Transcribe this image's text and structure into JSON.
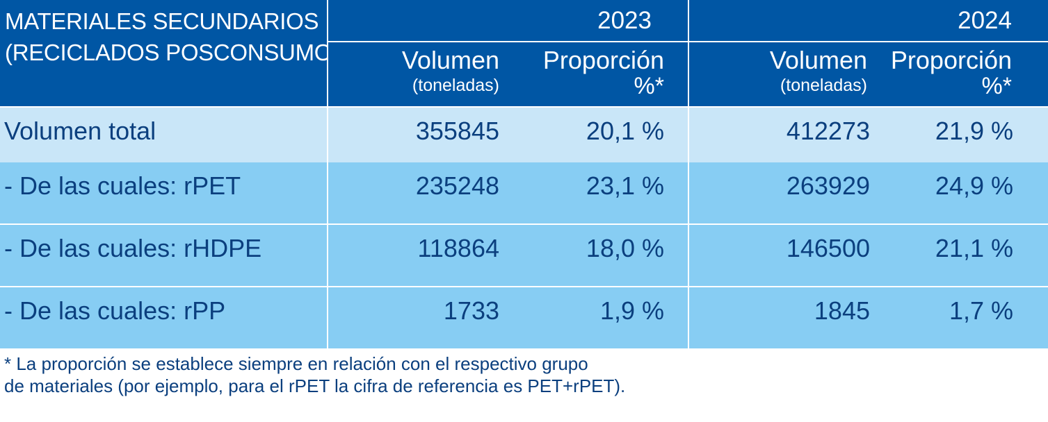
{
  "header": {
    "title_line1": "MATERIALES SECUNDARIOS",
    "title_line2": "(RECICLADOS POSCONSUMO)",
    "year_2023": "2023",
    "year_2024": "2024",
    "volume_label": "Volumen",
    "volume_unit": "(toneladas)",
    "proportion_label": "Proporción",
    "proportion_unit": "%*"
  },
  "rows": [
    {
      "label": "Volumen total",
      "vol_2023": "355845",
      "prop_2023": "20,1 %",
      "vol_2024": "412273",
      "prop_2024": "21,9 %"
    },
    {
      "label": "- De las cuales: rPET",
      "vol_2023": "235248",
      "prop_2023": "23,1 %",
      "vol_2024": "263929",
      "prop_2024": "24,9 %"
    },
    {
      "label": "- De las cuales: rHDPE",
      "vol_2023": "118864",
      "prop_2023": "18,0 %",
      "vol_2024": "146500",
      "prop_2024": "21,1 %"
    },
    {
      "label": "- De las cuales: rPP",
      "vol_2023": "1733",
      "prop_2023": "1,9 %",
      "vol_2024": "1845",
      "prop_2024": "1,7 %"
    }
  ],
  "footnote": {
    "line1": "* La proporción se establece siempre en relación con el respectivo grupo",
    "line2": "de materiales (por ejemplo, para el rPET la cifra de referencia es PET+rPET)."
  },
  "colors": {
    "header_bg": "#0056a4",
    "first_row_bg": "#c9e6f8",
    "row_bg": "#87cdf3",
    "text": "#0b3f7e"
  }
}
